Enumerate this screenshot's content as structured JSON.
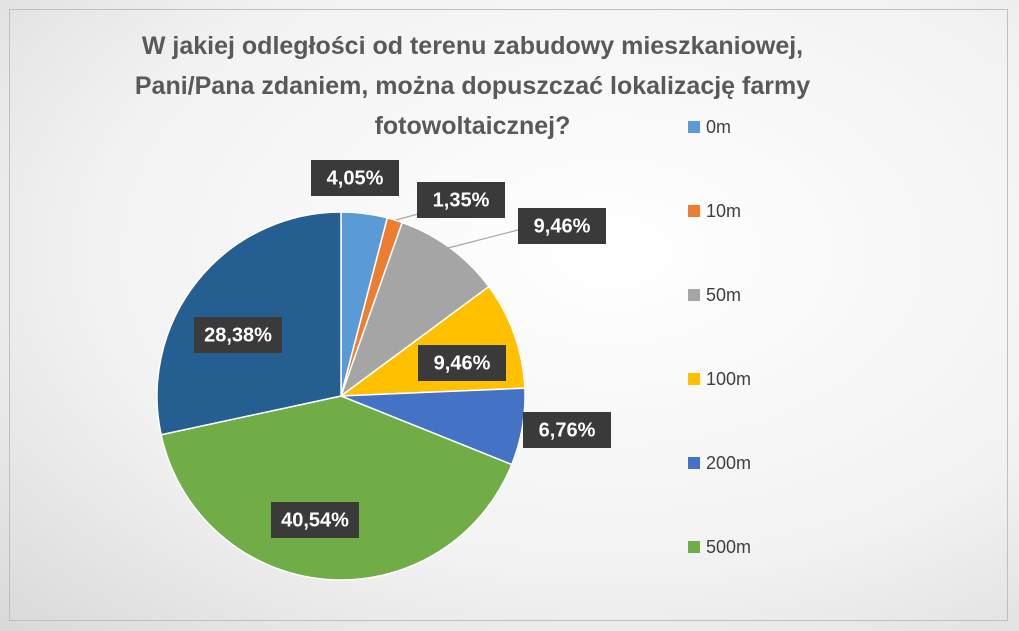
{
  "chart_data": {
    "type": "pie",
    "title": "W jakiej odległości od terenu zabudowy mieszkaniowej, Pani/Pana zdaniem, można dopuszczać lokalizację farmy fotowoltaicznej?",
    "categories": [
      "0m",
      "10m",
      "50m",
      "100m",
      "200m",
      "500m",
      null
    ],
    "values": [
      4.05,
      1.35,
      9.46,
      9.46,
      6.76,
      40.54,
      28.38
    ],
    "value_labels": [
      "4,05%",
      "1,35%",
      "9,46%",
      "9,46%",
      "6,76%",
      "40,54%",
      "28,38%"
    ],
    "colors": [
      "#5b9bd5",
      "#ed7d31",
      "#a5a5a5",
      "#ffc000",
      "#4472c4",
      "#70ad47",
      "#255e91"
    ],
    "legend": "right"
  }
}
